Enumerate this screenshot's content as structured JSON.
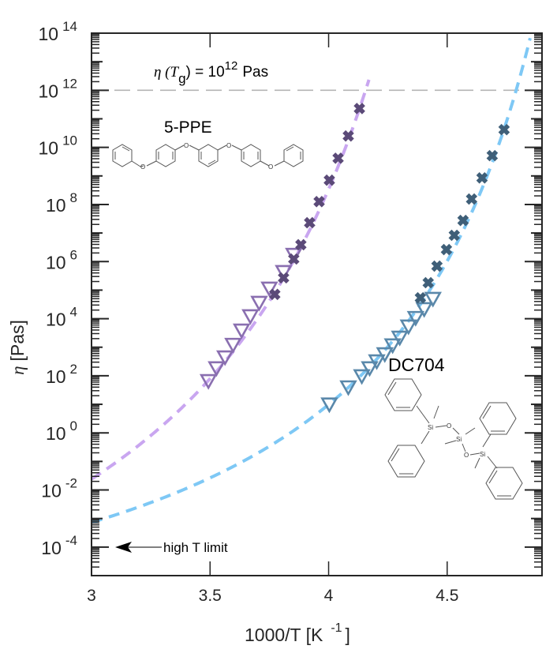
{
  "chart_data": {
    "type": "scatter",
    "title": "",
    "xlabel": "1000/T [K",
    "xlabel_sup": "-1",
    "xlabel_close": "]",
    "ylabel_symbol": "η",
    "ylabel": "[Pas]",
    "xlim": [
      3,
      4.9
    ],
    "ylim_log10": [
      -5,
      14
    ],
    "yscale": "log",
    "x_ticks": [
      3,
      3.5,
      4,
      4.5
    ],
    "x_tick_labels": [
      "3",
      "3.5",
      "4",
      "4.5"
    ],
    "y_ticks_log10": [
      14,
      12,
      10,
      8,
      6,
      4,
      2,
      0,
      -2,
      -4
    ],
    "y_tick_base": "10",
    "y_tick_exponents": [
      "14",
      "12",
      "10",
      "8",
      "6",
      "4",
      "2",
      "0",
      "-2",
      "-4"
    ],
    "grid": false,
    "reference_line": {
      "y_log10": 12,
      "label_prefix": "η (T",
      "label_sub": "g",
      "label_mid": ") = 10",
      "label_sup": "12",
      "label_suffix": "Pas",
      "color": "#b4b4b4"
    },
    "annotations": {
      "ppe_name": "5-PPE",
      "dc704_name": "DC704",
      "high_t_label": "high T limit",
      "high_t_log10": -4,
      "ppe_atoms": [
        "O",
        "O",
        "O",
        "O"
      ],
      "dc704_atoms": [
        "Si",
        "O",
        "Si",
        "O",
        "Si"
      ]
    },
    "series": [
      {
        "name": "5-PPE fit",
        "kind": "vft_curve",
        "color": "#c9a6f0",
        "A": -8.32,
        "B": 927,
        "T0": 195.0,
        "x_range": [
          3,
          4.17
        ]
      },
      {
        "name": "DC704 fit",
        "kind": "vft_curve",
        "color": "#7ec8f5",
        "A": -6.59,
        "B": 528.5,
        "T0": 180.3,
        "x_range": [
          3,
          4.85
        ]
      },
      {
        "name": "5-PPE triangles",
        "kind": "triangle",
        "color": "#8a6fb0",
        "x": [
          3.493,
          3.527,
          3.563,
          3.597,
          3.633,
          3.67,
          3.707,
          3.75,
          3.81,
          3.853
        ],
        "y_log10": [
          1.83,
          2.28,
          2.66,
          3.1,
          3.6,
          4.1,
          4.57,
          5.07,
          5.65,
          6.25
        ]
      },
      {
        "name": "5-PPE crosses",
        "kind": "cross",
        "color": "#5b4a78",
        "x": [
          4.13,
          4.083,
          4.04,
          4.003,
          3.96,
          3.92,
          3.883,
          3.853,
          3.81,
          3.773
        ],
        "y_log10": [
          11.36,
          10.4,
          9.62,
          8.85,
          8.1,
          7.36,
          6.59,
          6.09,
          5.43,
          4.85
        ]
      },
      {
        "name": "DC704 triangles",
        "kind": "triangle",
        "color": "#5a88aa",
        "x": [
          4.003,
          4.083,
          4.14,
          4.173,
          4.203,
          4.237,
          4.27,
          4.3,
          4.337,
          4.367,
          4.403,
          4.44
        ],
        "y_log10": [
          1.01,
          1.61,
          2.0,
          2.28,
          2.52,
          2.77,
          3.08,
          3.35,
          3.74,
          4.04,
          4.35,
          4.71
        ]
      },
      {
        "name": "DC704 crosses",
        "kind": "cross",
        "color": "#3f5f78",
        "x": [
          4.74,
          4.69,
          4.647,
          4.603,
          4.567,
          4.53,
          4.497,
          4.457,
          4.42,
          4.387
        ],
        "y_log10": [
          10.62,
          9.71,
          8.93,
          8.19,
          7.44,
          6.92,
          6.42,
          5.84,
          5.26,
          4.73
        ]
      }
    ]
  }
}
